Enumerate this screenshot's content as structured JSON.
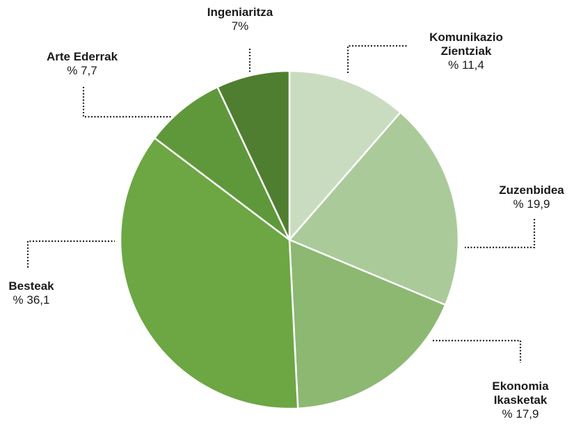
{
  "chart_data": {
    "type": "pie",
    "categories": [
      "Komunikazio Zientziak",
      "Zuzenbidea",
      "Ekonomia Ikasketak",
      "Besteak",
      "Arte Ederrak",
      "Ingeniaritza"
    ],
    "values": [
      11.4,
      19.9,
      17.9,
      36.1,
      7.7,
      7
    ],
    "value_labels": [
      "% 11,4",
      "% 19,9",
      "% 17,9",
      "% 36,1",
      "% 7,7",
      "7%"
    ],
    "colors": [
      "#c9dcc0",
      "#abca9a",
      "#8cb872",
      "#6ca743",
      "#5f983b",
      "#4f7e30"
    ]
  }
}
